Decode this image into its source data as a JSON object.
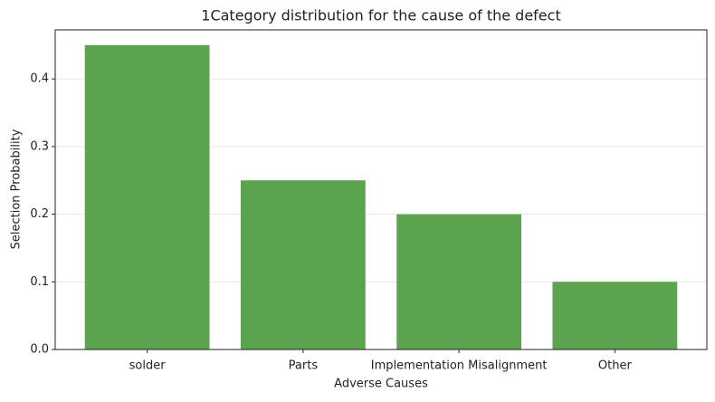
{
  "chart_data": {
    "type": "bar",
    "title": "1Category distribution for the cause of the defect",
    "x_label": "Adverse Causes",
    "y_label": "Selection Probability",
    "categories": [
      "solder",
      "Parts",
      "Implementation Misalignment",
      "Other"
    ],
    "values": [
      0.45,
      0.25,
      0.2,
      0.1
    ],
    "color": "#5ba34f",
    "ylim": [
      0,
      0.4725
    ],
    "yticks": [
      {
        "value": 0,
        "label": "0.0"
      },
      0.1,
      0.2,
      0.3,
      0.4
    ],
    "grid": true
  }
}
